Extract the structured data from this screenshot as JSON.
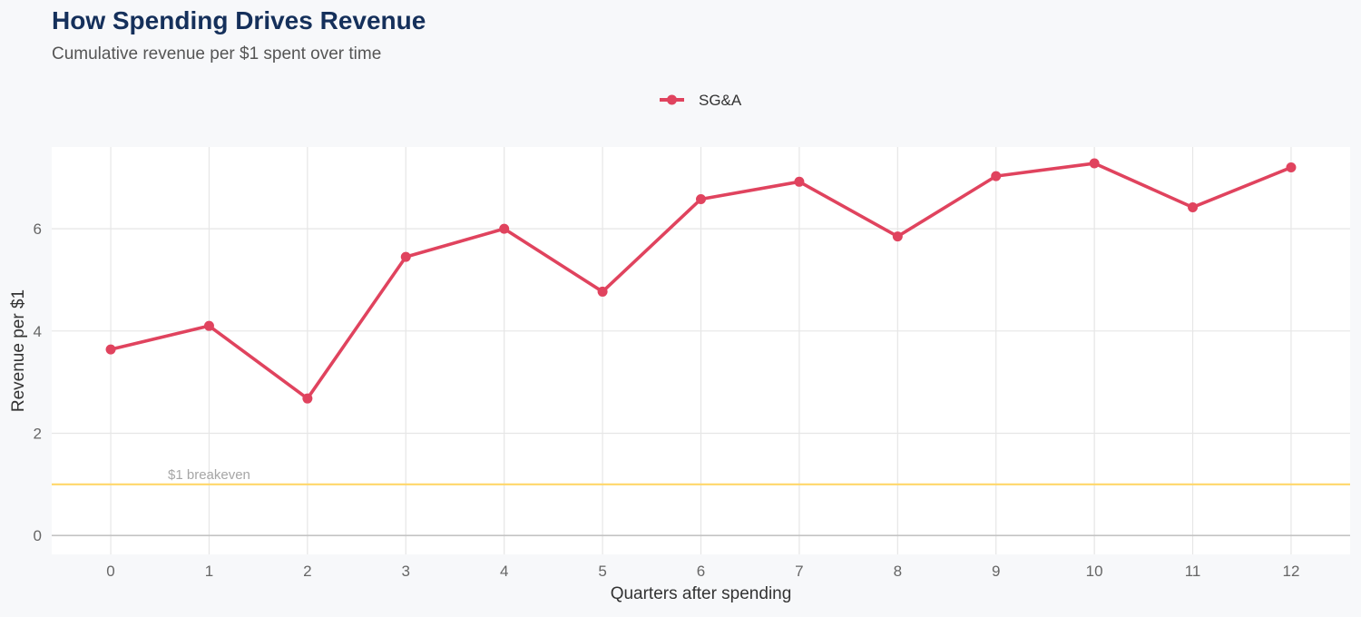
{
  "chart_data": {
    "type": "line",
    "title": "How Spending Drives Revenue",
    "subtitle": "Cumulative revenue per $1 spent over time",
    "xlabel": "Quarters after spending",
    "ylabel": "Revenue per $1",
    "x": [
      0,
      1,
      2,
      3,
      4,
      5,
      6,
      7,
      8,
      9,
      10,
      11,
      12
    ],
    "xlim": [
      -0.6,
      12.6
    ],
    "ylim": [
      -0.37,
      7.6
    ],
    "yticks": [
      0,
      2,
      4,
      6
    ],
    "series": [
      {
        "name": "SG&A",
        "color": "#e0435e",
        "values": [
          3.64,
          4.1,
          2.68,
          5.45,
          6.0,
          4.77,
          6.58,
          6.92,
          5.85,
          7.03,
          7.28,
          6.42,
          7.2
        ]
      }
    ],
    "reference_line": {
      "y": 1,
      "label": "$1 breakeven",
      "color": "#ffd76a"
    },
    "legend_position": "top-center",
    "grid": true,
    "colors": {
      "title": "#15305b",
      "subtitle": "#555555",
      "tick": "#666666",
      "axis_title": "#333333",
      "grid": "#e6e6e6",
      "panel": "#ffffff",
      "background": "#f7f8fa",
      "baseline": "#c4c4c4",
      "reference_label": "#a6a6a6"
    }
  }
}
